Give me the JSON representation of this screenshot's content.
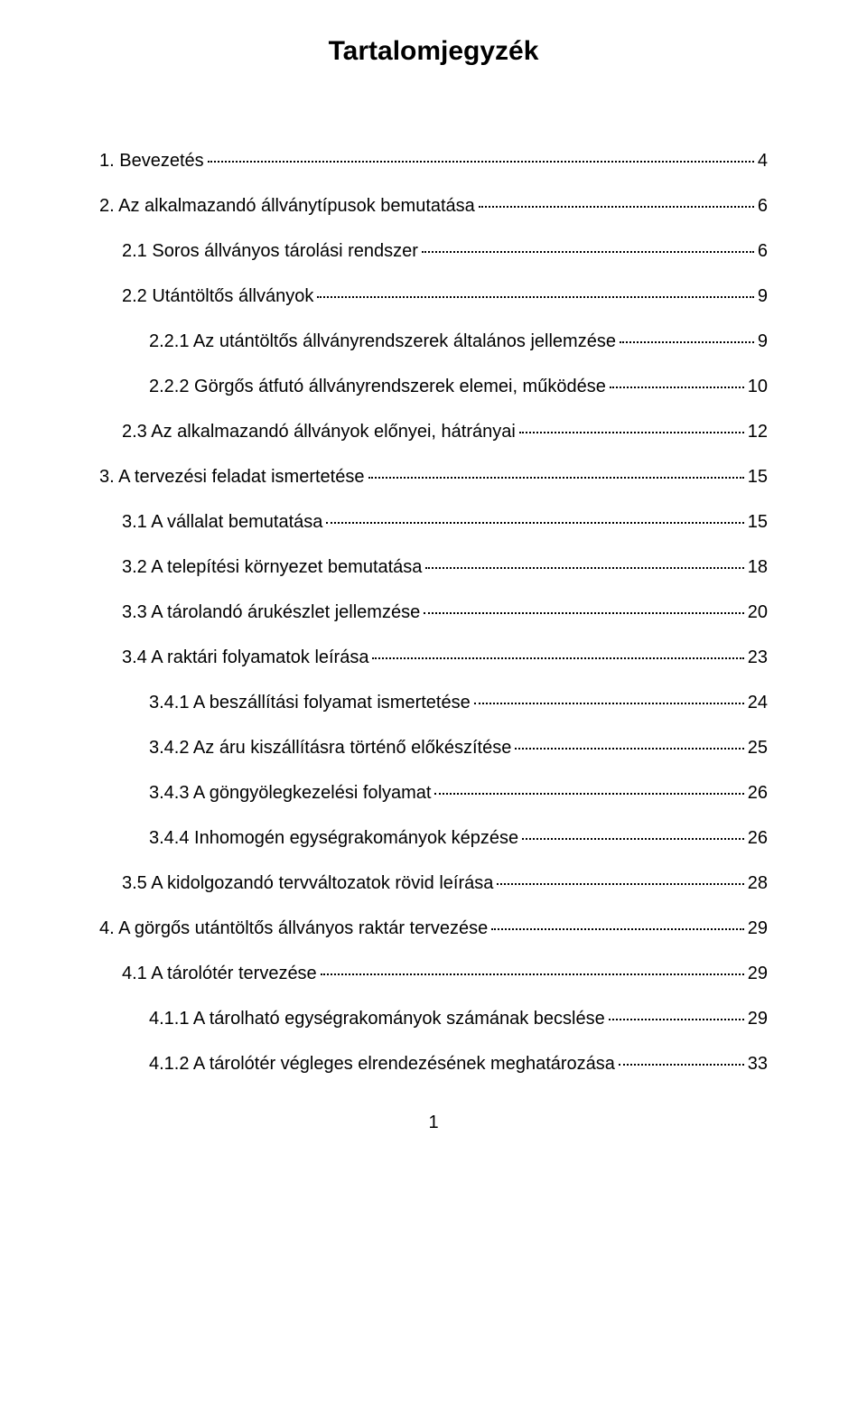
{
  "title": "Tartalomjegyzék",
  "page_number": "1",
  "entries": [
    {
      "label": "1. Bevezetés",
      "page": "4",
      "indent": 0
    },
    {
      "label": "2. Az alkalmazandó állványtípusok bemutatása",
      "page": "6",
      "indent": 0
    },
    {
      "label": "2.1 Soros állványos tárolási rendszer",
      "page": "6",
      "indent": 1
    },
    {
      "label": "2.2 Utántöltős állványok",
      "page": "9",
      "indent": 1
    },
    {
      "label": "2.2.1 Az utántöltős állványrendszerek általános jellemzése",
      "page": "9",
      "indent": 2
    },
    {
      "label": "2.2.2 Görgős átfutó állványrendszerek elemei, működése",
      "page": "10",
      "indent": 2
    },
    {
      "label": "2.3 Az alkalmazandó állványok előnyei, hátrányai",
      "page": "12",
      "indent": 1
    },
    {
      "label": "3. A tervezési feladat ismertetése",
      "page": "15",
      "indent": 0
    },
    {
      "label": "3.1 A vállalat bemutatása",
      "page": "15",
      "indent": 1
    },
    {
      "label": "3.2 A telepítési környezet bemutatása",
      "page": "18",
      "indent": 1
    },
    {
      "label": "3.3 A tárolandó árukészlet jellemzése",
      "page": "20",
      "indent": 1
    },
    {
      "label": "3.4 A raktári folyamatok leírása",
      "page": "23",
      "indent": 1
    },
    {
      "label": "3.4.1 A beszállítási folyamat ismertetése",
      "page": "24",
      "indent": 2
    },
    {
      "label": "3.4.2 Az áru kiszállításra történő előkészítése",
      "page": "25",
      "indent": 2
    },
    {
      "label": "3.4.3 A göngyölegkezelési folyamat",
      "page": "26",
      "indent": 2
    },
    {
      "label": "3.4.4 Inhomogén egységrakományok képzése",
      "page": "26",
      "indent": 2
    },
    {
      "label": "3.5 A kidolgozandó tervváltozatok rövid leírása",
      "page": "28",
      "indent": 1
    },
    {
      "label": "4. A görgős utántöltős állványos raktár tervezése",
      "page": "29",
      "indent": 0
    },
    {
      "label": "4.1 A tárolótér tervezése",
      "page": "29",
      "indent": 1
    },
    {
      "label": "4.1.1 A tárolható egységrakományok számának becslése",
      "page": "29",
      "indent": 2
    },
    {
      "label": "4.1.2 A tárolótér végleges elrendezésének meghatározása",
      "page": "33",
      "indent": 2
    }
  ]
}
